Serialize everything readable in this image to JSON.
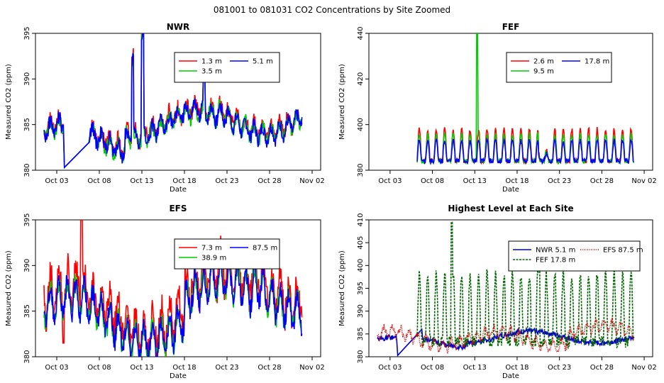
{
  "main_title": "081001  to  081031 CO2 Concentrations by Site Zoomed",
  "chart_data": [
    {
      "type": "line",
      "title": "NWR",
      "xlabel": "Date",
      "ylabel": "Measured CO2 (ppm)",
      "x_ticks": [
        "Oct 03",
        "Oct 08",
        "Oct 13",
        "Oct 18",
        "Oct 23",
        "Oct 28",
        "Nov 02"
      ],
      "xlim": [
        0,
        32
      ],
      "ylim": [
        380,
        395
      ],
      "y_ticks": [
        "380",
        "385",
        "390",
        "395"
      ],
      "legend_position": "top-right",
      "legend_columns": 2,
      "series": [
        {
          "name": "1.3 m",
          "color": "#ff0000",
          "line_style": "solid"
        },
        {
          "name": "3.5 m",
          "color": "#00cc00",
          "line_style": "solid"
        },
        {
          "name": "5.1 m",
          "color": "#0000ff",
          "line_style": "solid"
        }
      ]
    },
    {
      "type": "line",
      "title": "FEF",
      "xlabel": "Date",
      "ylabel": "Measured CO2 (ppm)",
      "x_ticks": [
        "Oct 03",
        "Oct 08",
        "Oct 13",
        "Oct 18",
        "Oct 23",
        "Oct 28",
        "Nov 02"
      ],
      "xlim": [
        0,
        32
      ],
      "ylim": [
        380,
        440
      ],
      "y_ticks": [
        "380",
        "400",
        "420",
        "440"
      ],
      "legend_position": "top-right",
      "legend_columns": 2,
      "series": [
        {
          "name": "2.6 m",
          "color": "#ff0000",
          "line_style": "solid"
        },
        {
          "name": "9.5 m",
          "color": "#00cc00",
          "line_style": "solid"
        },
        {
          "name": "17.8 m",
          "color": "#0000ff",
          "line_style": "solid"
        }
      ]
    },
    {
      "type": "line",
      "title": "EFS",
      "xlabel": "Date",
      "ylabel": "Measured CO2 (ppm)",
      "x_ticks": [
        "Oct 03",
        "Oct 08",
        "Oct 13",
        "Oct 18",
        "Oct 23",
        "Oct 28",
        "Nov 02"
      ],
      "xlim": [
        0,
        32
      ],
      "ylim": [
        380,
        395
      ],
      "y_ticks": [
        "380",
        "385",
        "390",
        "395"
      ],
      "legend_position": "top-right",
      "legend_columns": 2,
      "series": [
        {
          "name": "7.3 m",
          "color": "#ff0000",
          "line_style": "solid"
        },
        {
          "name": "38.9 m",
          "color": "#00cc00",
          "line_style": "solid"
        },
        {
          "name": "87.5 m",
          "color": "#0000ff",
          "line_style": "solid"
        }
      ]
    },
    {
      "type": "line",
      "title": "Highest Level at Each Site",
      "xlabel": "Date",
      "ylabel": "Measured CO2 (ppm)",
      "x_ticks": [
        "Oct 03",
        "Oct 08",
        "Oct 13",
        "Oct 18",
        "Oct 23",
        "Oct 28",
        "Nov 02"
      ],
      "xlim": [
        0,
        32
      ],
      "ylim": [
        380,
        410
      ],
      "y_ticks": [
        "380",
        "385",
        "390",
        "395",
        "400",
        "405",
        "410"
      ],
      "legend_position": "top-right",
      "legend_columns": 2,
      "series": [
        {
          "name": "NWR  5.1 m",
          "color": "#0000cc",
          "line_style": "solid"
        },
        {
          "name": "FEF  17.8 m",
          "color": "#006600",
          "line_style": "dashed"
        },
        {
          "name": "EFS  87.5 m",
          "color": "#cc0000",
          "line_style": "dotted"
        }
      ]
    }
  ]
}
